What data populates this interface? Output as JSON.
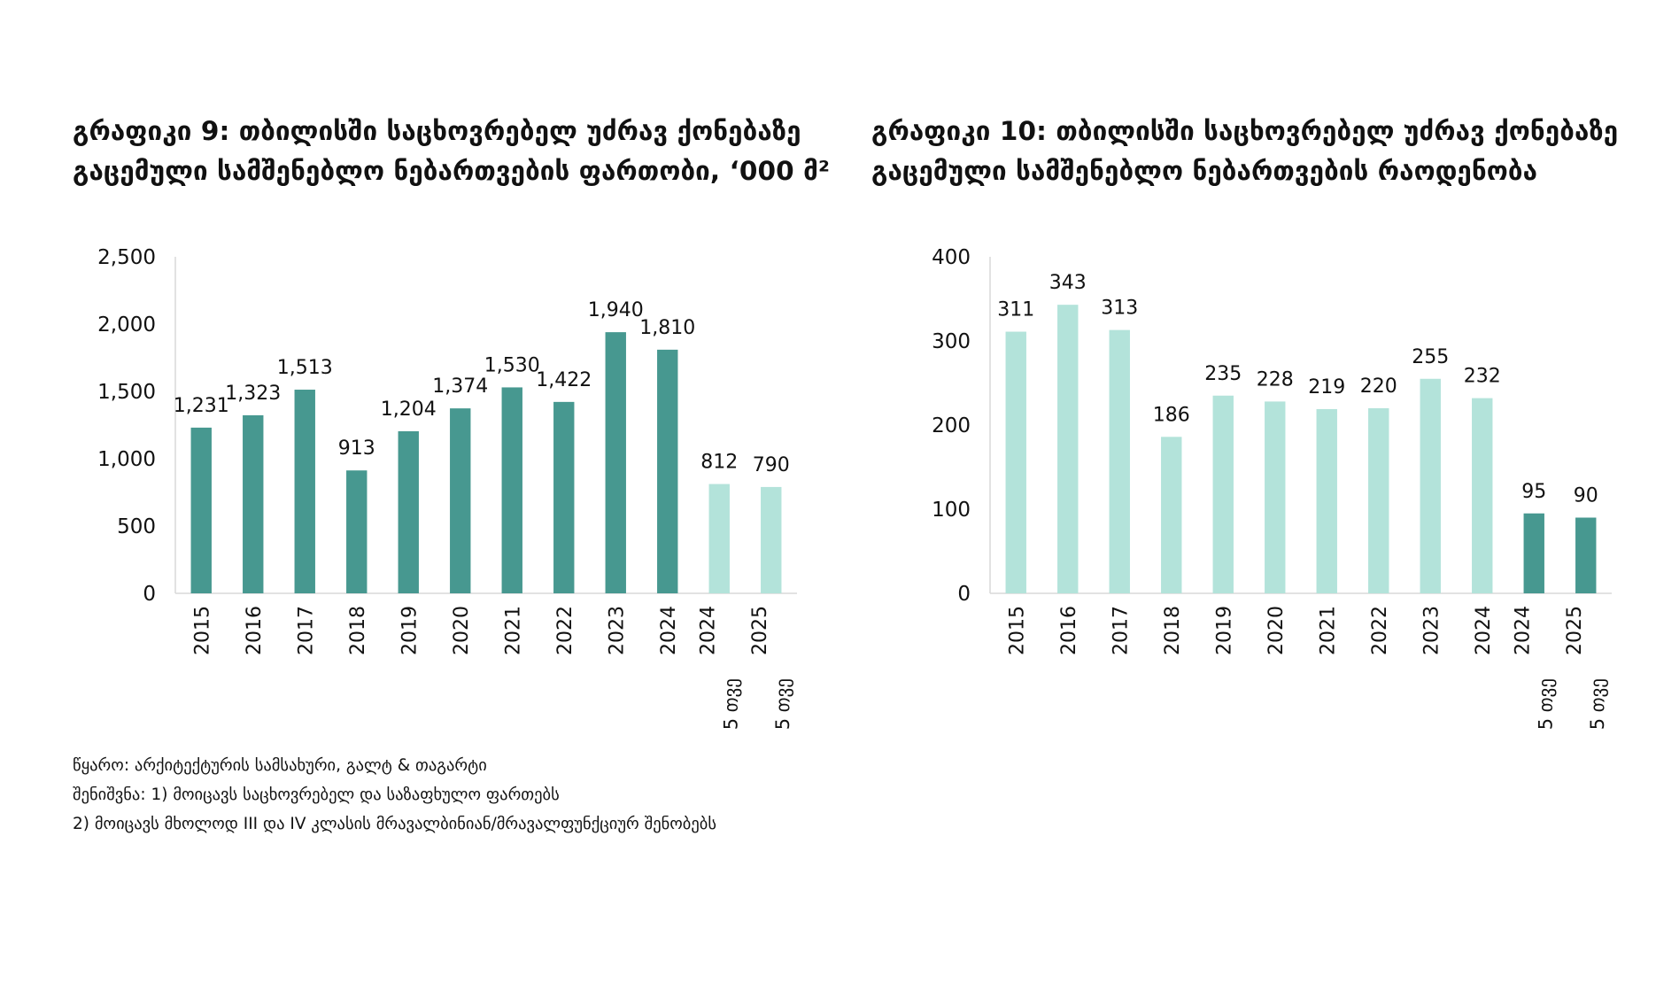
{
  "charts": [
    {
      "title": "გრაფიკი 9: თბილისში საცხოვრებელ უძრავ ქონებაზე გაცემული სამშენებლო ნებართვების ფართობი, ‘000 მ²",
      "colors": {
        "primary": "#479890",
        "light": "#b3e3da"
      },
      "chart_data": {
        "type": "bar",
        "categories": [
          "2015",
          "2016",
          "2017",
          "2018",
          "2019",
          "2020",
          "2021",
          "2022",
          "2023",
          "2024",
          "5 თვე 2024",
          "5 თვე 2025"
        ],
        "values": [
          1231,
          1323,
          1513,
          913,
          1204,
          1374,
          1530,
          1422,
          1940,
          1810,
          812,
          790
        ],
        "data_labels": [
          "1,231",
          "1,323",
          "1,513",
          "913",
          "1,204",
          "1,374",
          "1,530",
          "1,422",
          "1,940",
          "1,810",
          "812",
          "790"
        ],
        "highlight": [
          "primary",
          "primary",
          "primary",
          "primary",
          "primary",
          "primary",
          "primary",
          "primary",
          "primary",
          "primary",
          "light",
          "light"
        ],
        "ylim": [
          0,
          2500
        ],
        "yticks": [
          0,
          500,
          1000,
          1500,
          2000,
          2500
        ],
        "ytick_labels": [
          "0",
          "500",
          "1,000",
          "1,500",
          "2,000",
          "2,500"
        ],
        "grid": false
      }
    },
    {
      "title": "გრაფიკი 10: თბილისში საცხოვრებელ უძრავ ქონებაზე გაცემული სამშენებლო ნებართვების რაოდენობა",
      "colors": {
        "primary": "#479890",
        "light": "#b3e3da"
      },
      "chart_data": {
        "type": "bar",
        "categories": [
          "2015",
          "2016",
          "2017",
          "2018",
          "2019",
          "2020",
          "2021",
          "2022",
          "2023",
          "2024",
          "5 თვე 2024",
          "5 თვე 2025"
        ],
        "values": [
          311,
          343,
          313,
          186,
          235,
          228,
          219,
          220,
          255,
          232,
          95,
          90
        ],
        "data_labels": [
          "311",
          "343",
          "313",
          "186",
          "235",
          "228",
          "219",
          "220",
          "255",
          "232",
          "95",
          "90"
        ],
        "highlight": [
          "light",
          "light",
          "light",
          "light",
          "light",
          "light",
          "light",
          "light",
          "light",
          "light",
          "primary",
          "primary"
        ],
        "ylim": [
          0,
          400
        ],
        "yticks": [
          0,
          100,
          200,
          300,
          400
        ],
        "ytick_labels": [
          "0",
          "100",
          "200",
          "300",
          "400"
        ],
        "grid": false
      }
    }
  ],
  "notes": {
    "source": "წყარო: არქიტექტურის სამსახური, გალტ & თაგარტი",
    "note1": "შენიშვნა: 1) მოიცავს საცხოვრებელ და საზაფხულო ფართებს",
    "note2": "2) მოიცავს მხოლოდ III და IV კლასის მრავალბინიან/მრავალფუნქციურ შენობებს"
  }
}
